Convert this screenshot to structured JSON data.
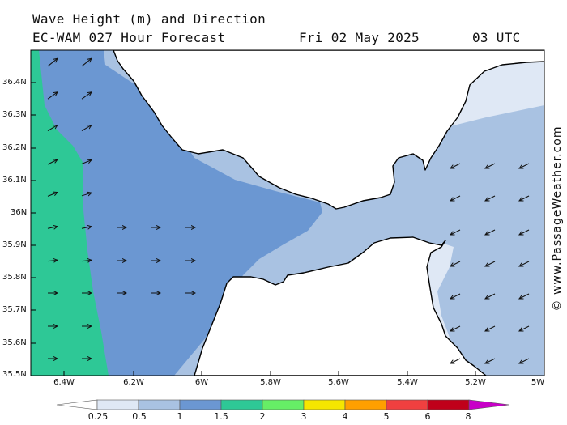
{
  "header": {
    "title": "Wave Height (m) and Direction",
    "model_line": "EC-WAM 027 Hour Forecast",
    "date": "Fri 02 May 2025",
    "time": "03 UTC"
  },
  "credit": "© www.PassageWeather.com",
  "axes": {
    "lat_labels": [
      "36.4N",
      "36.3N",
      "36.2N",
      "36.1N",
      "36N",
      "35.9N",
      "35.8N",
      "35.7N",
      "35.6N",
      "35.5N"
    ],
    "lon_labels": [
      "6.4W",
      "6.2W",
      "6W",
      "5.8W",
      "5.6W",
      "5.4W",
      "5.2W",
      "5W"
    ]
  },
  "legend": {
    "ticks": [
      "0.25",
      "0.5",
      "1",
      "1.5",
      "2",
      "3",
      "4",
      "5",
      "6",
      "8"
    ],
    "colors": [
      "#dfe8f5",
      "#a9c2e2",
      "#6b97d2",
      "#2ec896",
      "#66ee66",
      "#f5e600",
      "#ff9f00",
      "#f04040",
      "#c0001a",
      "#c800c8"
    ]
  },
  "colors": {
    "land": "#ffffff",
    "coast": "#000000",
    "band_0_25": "#dfe8f5",
    "band_0_5": "#a9c2e2",
    "band_1": "#6b97d2",
    "band_1_5": "#2ec896"
  }
}
